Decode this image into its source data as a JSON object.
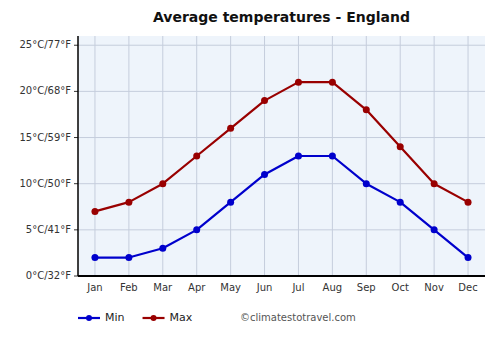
{
  "chart_data": {
    "type": "line",
    "title": "Average temperatures - England",
    "categories": [
      "Jan",
      "Feb",
      "Mar",
      "Apr",
      "May",
      "Jun",
      "Jul",
      "Aug",
      "Sep",
      "Oct",
      "Nov",
      "Dec"
    ],
    "series": [
      {
        "name": "Min",
        "color": "#0000cc",
        "marker": "circle",
        "values": [
          2,
          2,
          3,
          5,
          8,
          11,
          13,
          13,
          10,
          8,
          5,
          2
        ]
      },
      {
        "name": "Max",
        "color": "#990000",
        "marker": "circle",
        "values": [
          7,
          8,
          10,
          13,
          16,
          19,
          21,
          21,
          18,
          14,
          10,
          8
        ]
      }
    ],
    "ylim": [
      0,
      26
    ],
    "yticks": [
      {
        "value": 0,
        "label": "0°C/32°F"
      },
      {
        "value": 5,
        "label": "5°C/41°F"
      },
      {
        "value": 10,
        "label": "10°C/50°F"
      },
      {
        "value": 15,
        "label": "15°C/59°F"
      },
      {
        "value": 20,
        "label": "20°C/68°F"
      },
      {
        "value": 25,
        "label": "25°C/77°F"
      }
    ],
    "grid": true,
    "legend": "bottom",
    "annotations": [
      "©climatestotravel.com"
    ]
  }
}
